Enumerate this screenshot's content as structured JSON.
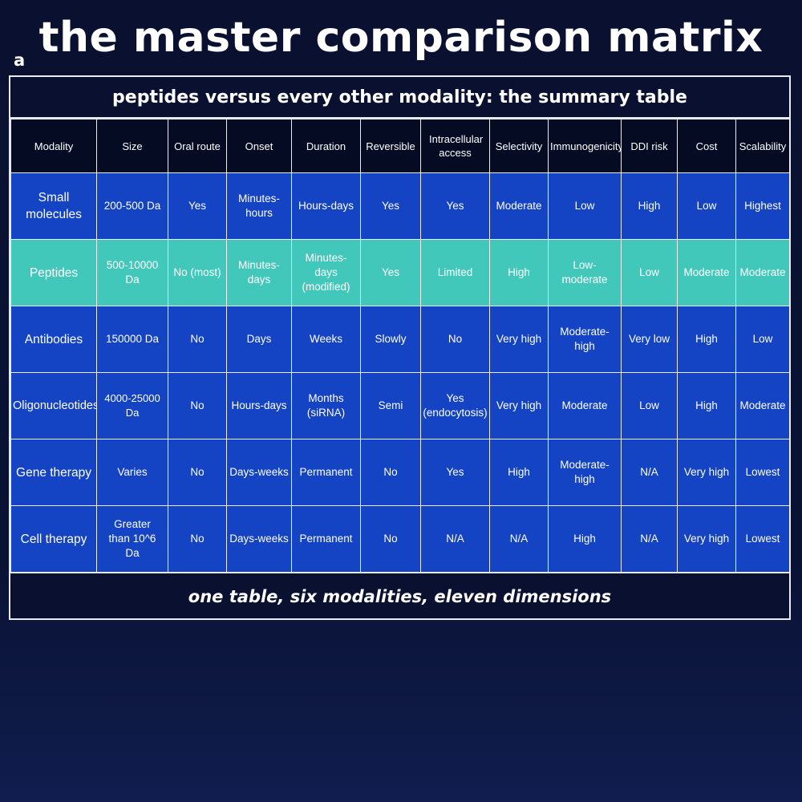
{
  "title": "the master comparison matrix",
  "panel_label": "a",
  "table": {
    "title": "peptides versus every other modality: the summary table",
    "footer": "one table, six modalities, eleven dimensions",
    "highlight_color": "#42c8ba",
    "cell_color": "#1443c4",
    "header_color": "#050b22",
    "columns": [
      "Modality",
      "Size",
      "Oral route",
      "Onset",
      "Duration",
      "Reversible",
      "Intracellular access",
      "Selectivity",
      "Immunogenicity",
      "DDI risk",
      "Cost",
      "Scalability"
    ],
    "rows": [
      [
        "Small molecules",
        "200-500 Da",
        "Yes",
        "Minutes-hours",
        "Hours-days",
        "Yes",
        "Yes",
        "Moderate",
        "Low",
        "High",
        "Low",
        "Highest"
      ],
      [
        "Peptides",
        "500-10000 Da",
        "No (most)",
        "Minutes-days",
        "Minutes-days (modified)",
        "Yes",
        "Limited",
        "High",
        "Low-moderate",
        "Low",
        "Moderate",
        "Moderate"
      ],
      [
        "Antibodies",
        "150000 Da",
        "No",
        "Days",
        "Weeks",
        "Slowly",
        "No",
        "Very high",
        "Moderate-high",
        "Very low",
        "High",
        "Low"
      ],
      [
        "Oligonucleotides",
        "4000-25000 Da",
        "No",
        "Hours-days",
        "Months (siRNA)",
        "Semi",
        "Yes (endocytosis)",
        "Very high",
        "Moderate",
        "Low",
        "High",
        "Moderate"
      ],
      [
        "Gene therapy",
        "Varies",
        "No",
        "Days-weeks",
        "Permanent",
        "No",
        "Yes",
        "High",
        "Moderate-high",
        "N/A",
        "Very high",
        "Lowest"
      ],
      [
        "Cell therapy",
        "Greater than 10^6 Da",
        "No",
        "Days-weeks",
        "Permanent",
        "No",
        "N/A",
        "N/A",
        "High",
        "N/A",
        "Very high",
        "Lowest"
      ]
    ]
  }
}
